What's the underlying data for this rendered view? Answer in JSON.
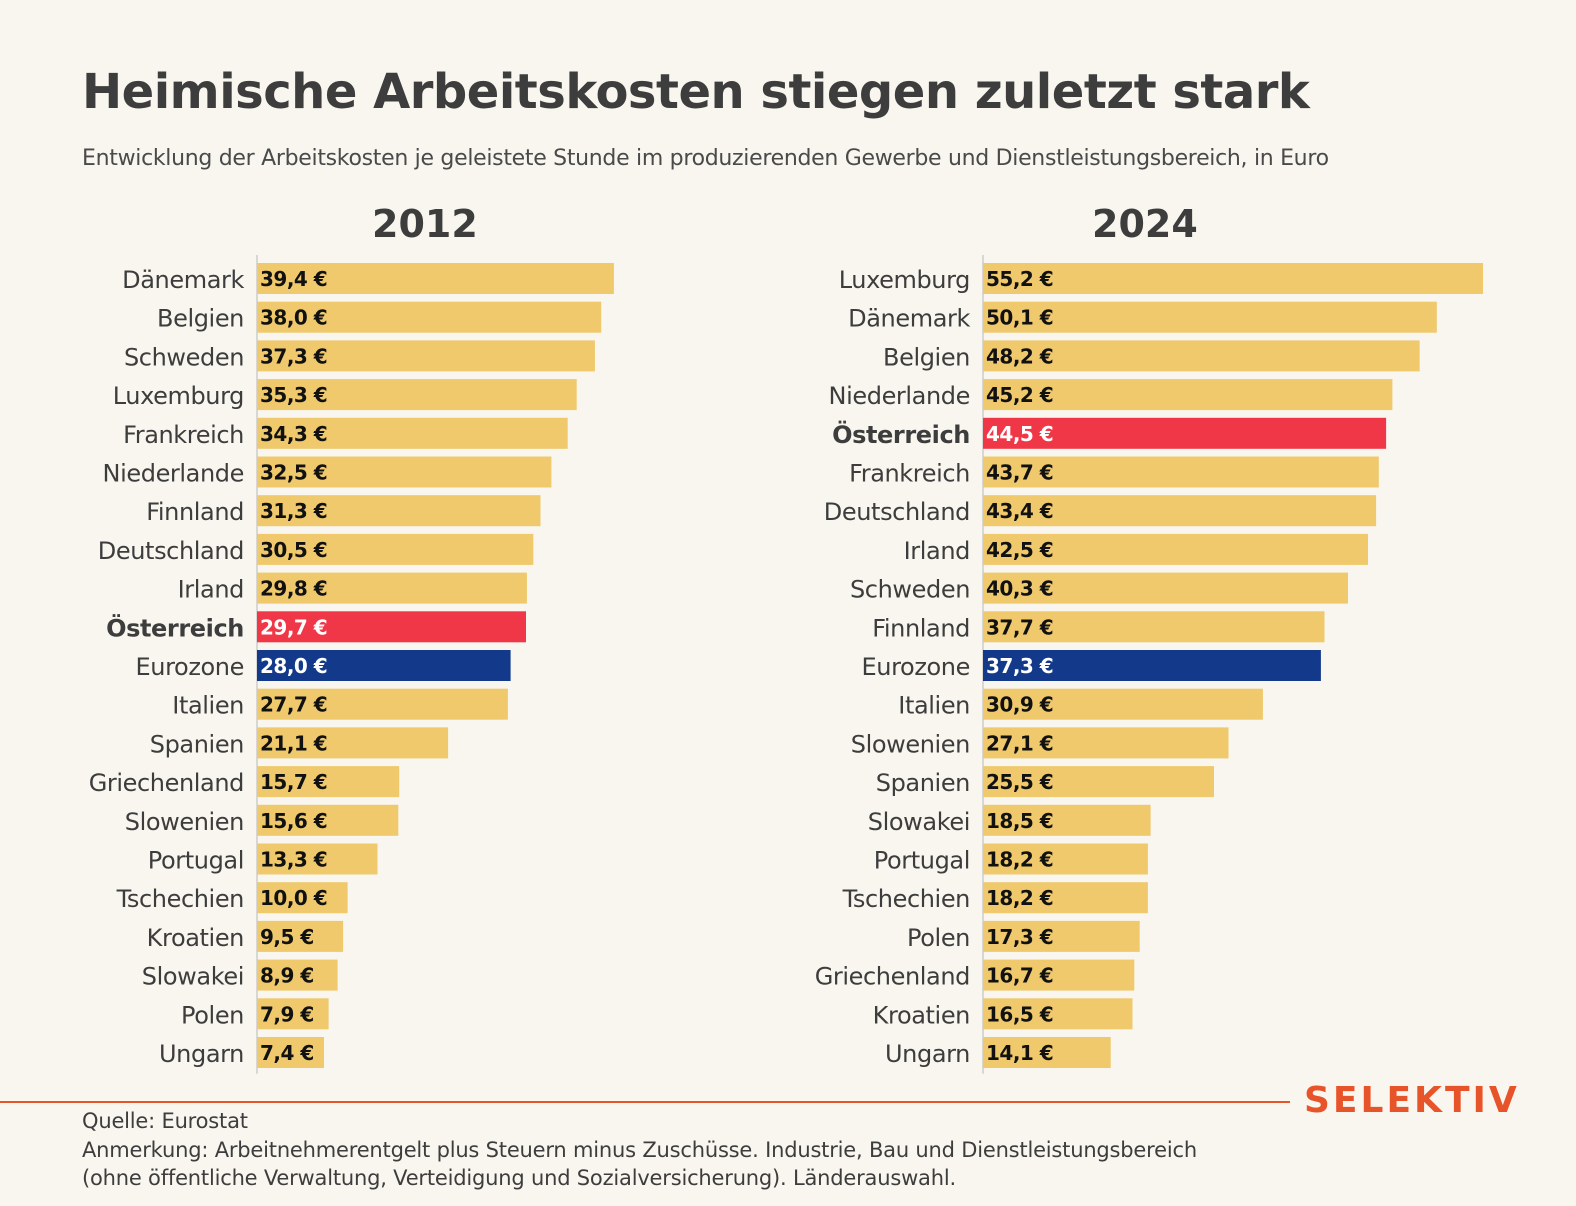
{
  "header": {
    "title": "Heimische Arbeitskosten stiegen zuletzt stark",
    "subtitle": "Entwicklung der Arbeitskosten je geleistete Stunde im produzierenden Gewerbe und Dienstleistungsbereich, in Euro"
  },
  "colors": {
    "default_bar": "#efc96c",
    "austria_bar": "#f03747",
    "eurozone_bar": "#13398a",
    "accent": "#e8542a"
  },
  "chart_data": [
    {
      "type": "bar",
      "orientation": "horizontal",
      "title": "2012",
      "unit": "€",
      "xlim": [
        0,
        55.2
      ],
      "categories": [
        "Dänemark",
        "Belgien",
        "Schweden",
        "Luxemburg",
        "Frankreich",
        "Niederlande",
        "Finnland",
        "Deutschland",
        "Irland",
        "Österreich",
        "Eurozone",
        "Italien",
        "Spanien",
        "Griechenland",
        "Slowenien",
        "Portugal",
        "Tschechien",
        "Kroatien",
        "Slowakei",
        "Polen",
        "Ungarn"
      ],
      "values": [
        39.4,
        38.0,
        37.3,
        35.3,
        34.3,
        32.5,
        31.3,
        30.5,
        29.8,
        29.7,
        28.0,
        27.7,
        21.1,
        15.7,
        15.6,
        13.3,
        10.0,
        9.5,
        8.9,
        7.9,
        7.4
      ],
      "labels": [
        "39,4 €",
        "38,0 €",
        "37,3 €",
        "35,3 €",
        "34,3 €",
        "32,5 €",
        "31,3 €",
        "30,5 €",
        "29,8 €",
        "29,7 €",
        "28,0 €",
        "27,7 €",
        "21,1 €",
        "15,7 €",
        "15,6 €",
        "13,3 €",
        "10,0 €",
        "9,5 €",
        "8,9 €",
        "7,9 €",
        "7,4 €"
      ],
      "highlight": {
        "Österreich": "austria",
        "Eurozone": "eurozone"
      }
    },
    {
      "type": "bar",
      "orientation": "horizontal",
      "title": "2024",
      "unit": "€",
      "xlim": [
        0,
        55.2
      ],
      "categories": [
        "Luxemburg",
        "Dänemark",
        "Belgien",
        "Niederlande",
        "Österreich",
        "Frankreich",
        "Deutschland",
        "Irland",
        "Schweden",
        "Finnland",
        "Eurozone",
        "Italien",
        "Slowenien",
        "Spanien",
        "Slowakei",
        "Portugal",
        "Tschechien",
        "Polen",
        "Griechenland",
        "Kroatien",
        "Ungarn"
      ],
      "values": [
        55.2,
        50.1,
        48.2,
        45.2,
        44.5,
        43.7,
        43.4,
        42.5,
        40.3,
        37.7,
        37.3,
        30.9,
        27.1,
        25.5,
        18.5,
        18.2,
        18.2,
        17.3,
        16.7,
        16.5,
        14.1
      ],
      "labels": [
        "55,2 €",
        "50,1 €",
        "48,2 €",
        "45,2 €",
        "44,5 €",
        "43,7 €",
        "43,4 €",
        "42,5 €",
        "40,3 €",
        "37,7 €",
        "37,3 €",
        "30,9 €",
        "27,1 €",
        "25,5 €",
        "18,5 €",
        "18,2 €",
        "18,2 €",
        "17,3 €",
        "16,7 €",
        "16,5 €",
        "14,1 €"
      ],
      "highlight": {
        "Österreich": "austria",
        "Eurozone": "eurozone"
      }
    }
  ],
  "footer": {
    "source": "Quelle: Eurostat",
    "note_line1": "Anmerkung: Arbeitnehmerentgelt plus Steuern minus Zuschüsse. Industrie, Bau und Dienstleistungsbereich",
    "note_line2": "(ohne öffentliche Verwaltung, Verteidigung und Sozialversicherung). Länderauswahl.",
    "logo": "SELEKTIV"
  }
}
